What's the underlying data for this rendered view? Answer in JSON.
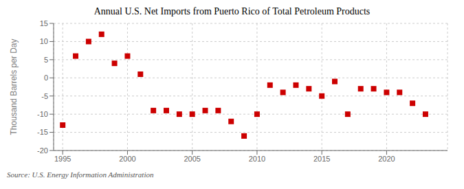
{
  "chart_data": {
    "type": "scatter",
    "title": "Annual U.S. Net Imports from Puerto Rico of Total Petroleum Products",
    "y_label": "Thousand Barrels per Day",
    "source": "Source: U.S. Energy Information Administration",
    "x": [
      1995,
      1996,
      1997,
      1998,
      1999,
      2000,
      2001,
      2002,
      2003,
      2004,
      2005,
      2006,
      2007,
      2008,
      2009,
      2010,
      2011,
      2012,
      2013,
      2014,
      2015,
      2016,
      2017,
      2018,
      2019,
      2020,
      2021,
      2022,
      2023
    ],
    "values": [
      -13,
      6,
      10,
      12,
      4,
      6,
      1,
      -9,
      -9,
      -10,
      -10,
      -9,
      -9,
      -12,
      -16,
      -10,
      -2,
      -4,
      -2,
      -3,
      -5,
      -1,
      -10,
      -3,
      -3,
      -4,
      -4,
      -7,
      -10
    ],
    "color": "#cc0000",
    "marker": "square",
    "xlim": [
      1994.3,
      2024.7
    ],
    "xticks": [
      1995,
      2000,
      2005,
      2010,
      2015,
      2020
    ],
    "ylim": [
      -20,
      15
    ],
    "yticks": [
      -20,
      -15,
      -10,
      -5,
      0,
      5,
      10,
      15
    ],
    "grid": true
  }
}
